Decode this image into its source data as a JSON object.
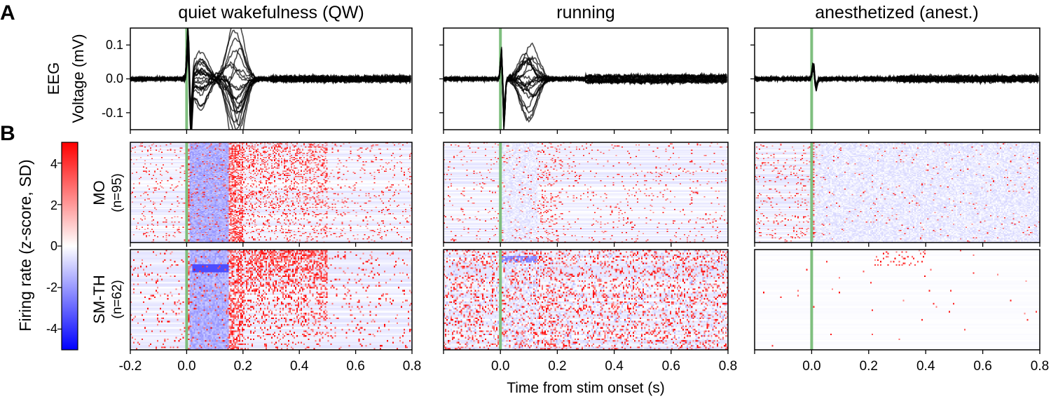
{
  "panel_labels": {
    "a": "A",
    "b": "B"
  },
  "chart_data": [
    {
      "type": "line",
      "panel": "A",
      "ylabel_line1": "EEG",
      "ylabel_line2": "Voltage (mV)",
      "xlim": [
        -0.2,
        0.8
      ],
      "ylim": [
        -0.15,
        0.15
      ],
      "yticks": [
        "0.1",
        "0.0",
        "-0.1"
      ],
      "yticks_values": [
        0.1,
        0.0,
        -0.1
      ],
      "stim_onset": 0.0,
      "stim_line_color": "#7fbf7f",
      "trace_color": "#000000",
      "conditions": [
        {
          "title": "quiet wakefulness (QW)",
          "n_traces": 22,
          "features": [
            {
              "t": 0.005,
              "v": 0.14
            },
            {
              "t": 0.015,
              "v": -0.15
            },
            {
              "t": 0.05,
              "v": 0.06
            },
            {
              "t": 0.16,
              "v": 0.07
            },
            {
              "t": 0.18,
              "v": -0.15
            }
          ]
        },
        {
          "title": "running",
          "n_traces": 22,
          "features": [
            {
              "t": 0.005,
              "v": 0.1
            },
            {
              "t": 0.012,
              "v": -0.14
            },
            {
              "t": 0.09,
              "v": 0.05
            },
            {
              "t": 0.11,
              "v": -0.07
            }
          ]
        },
        {
          "title": "anesthetized (anest.)",
          "n_traces": 22,
          "features": [
            {
              "t": 0.006,
              "v": 0.045
            },
            {
              "t": 0.015,
              "v": -0.03
            }
          ]
        }
      ]
    },
    {
      "type": "heatmap",
      "panel": "B",
      "colorbar_label": "Firing rate (z-score, SD)",
      "colorbar_ticks": [
        "4",
        "2",
        "0",
        "-2",
        "-4"
      ],
      "colorbar_values": [
        4,
        2,
        0,
        -2,
        -4
      ],
      "clim": [
        -5,
        5
      ],
      "colormap": [
        "#0000ff",
        "#ffffff",
        "#ff0000"
      ],
      "xlabel": "Time from stim onset (s)",
      "xlim": [
        -0.2,
        0.8
      ],
      "xticks_first": [
        "-0.2",
        "0.0",
        "0.2",
        "0.4",
        "0.6",
        "0.8"
      ],
      "xticks_other": [
        "0.0",
        "0.2",
        "0.4",
        "0.6",
        "0.8"
      ],
      "regions": [
        {
          "name": "MO",
          "n_label": "(n=95)",
          "n": 95
        },
        {
          "name": "SM-TH",
          "n_label": "(n=62)",
          "n": 62
        }
      ]
    }
  ]
}
